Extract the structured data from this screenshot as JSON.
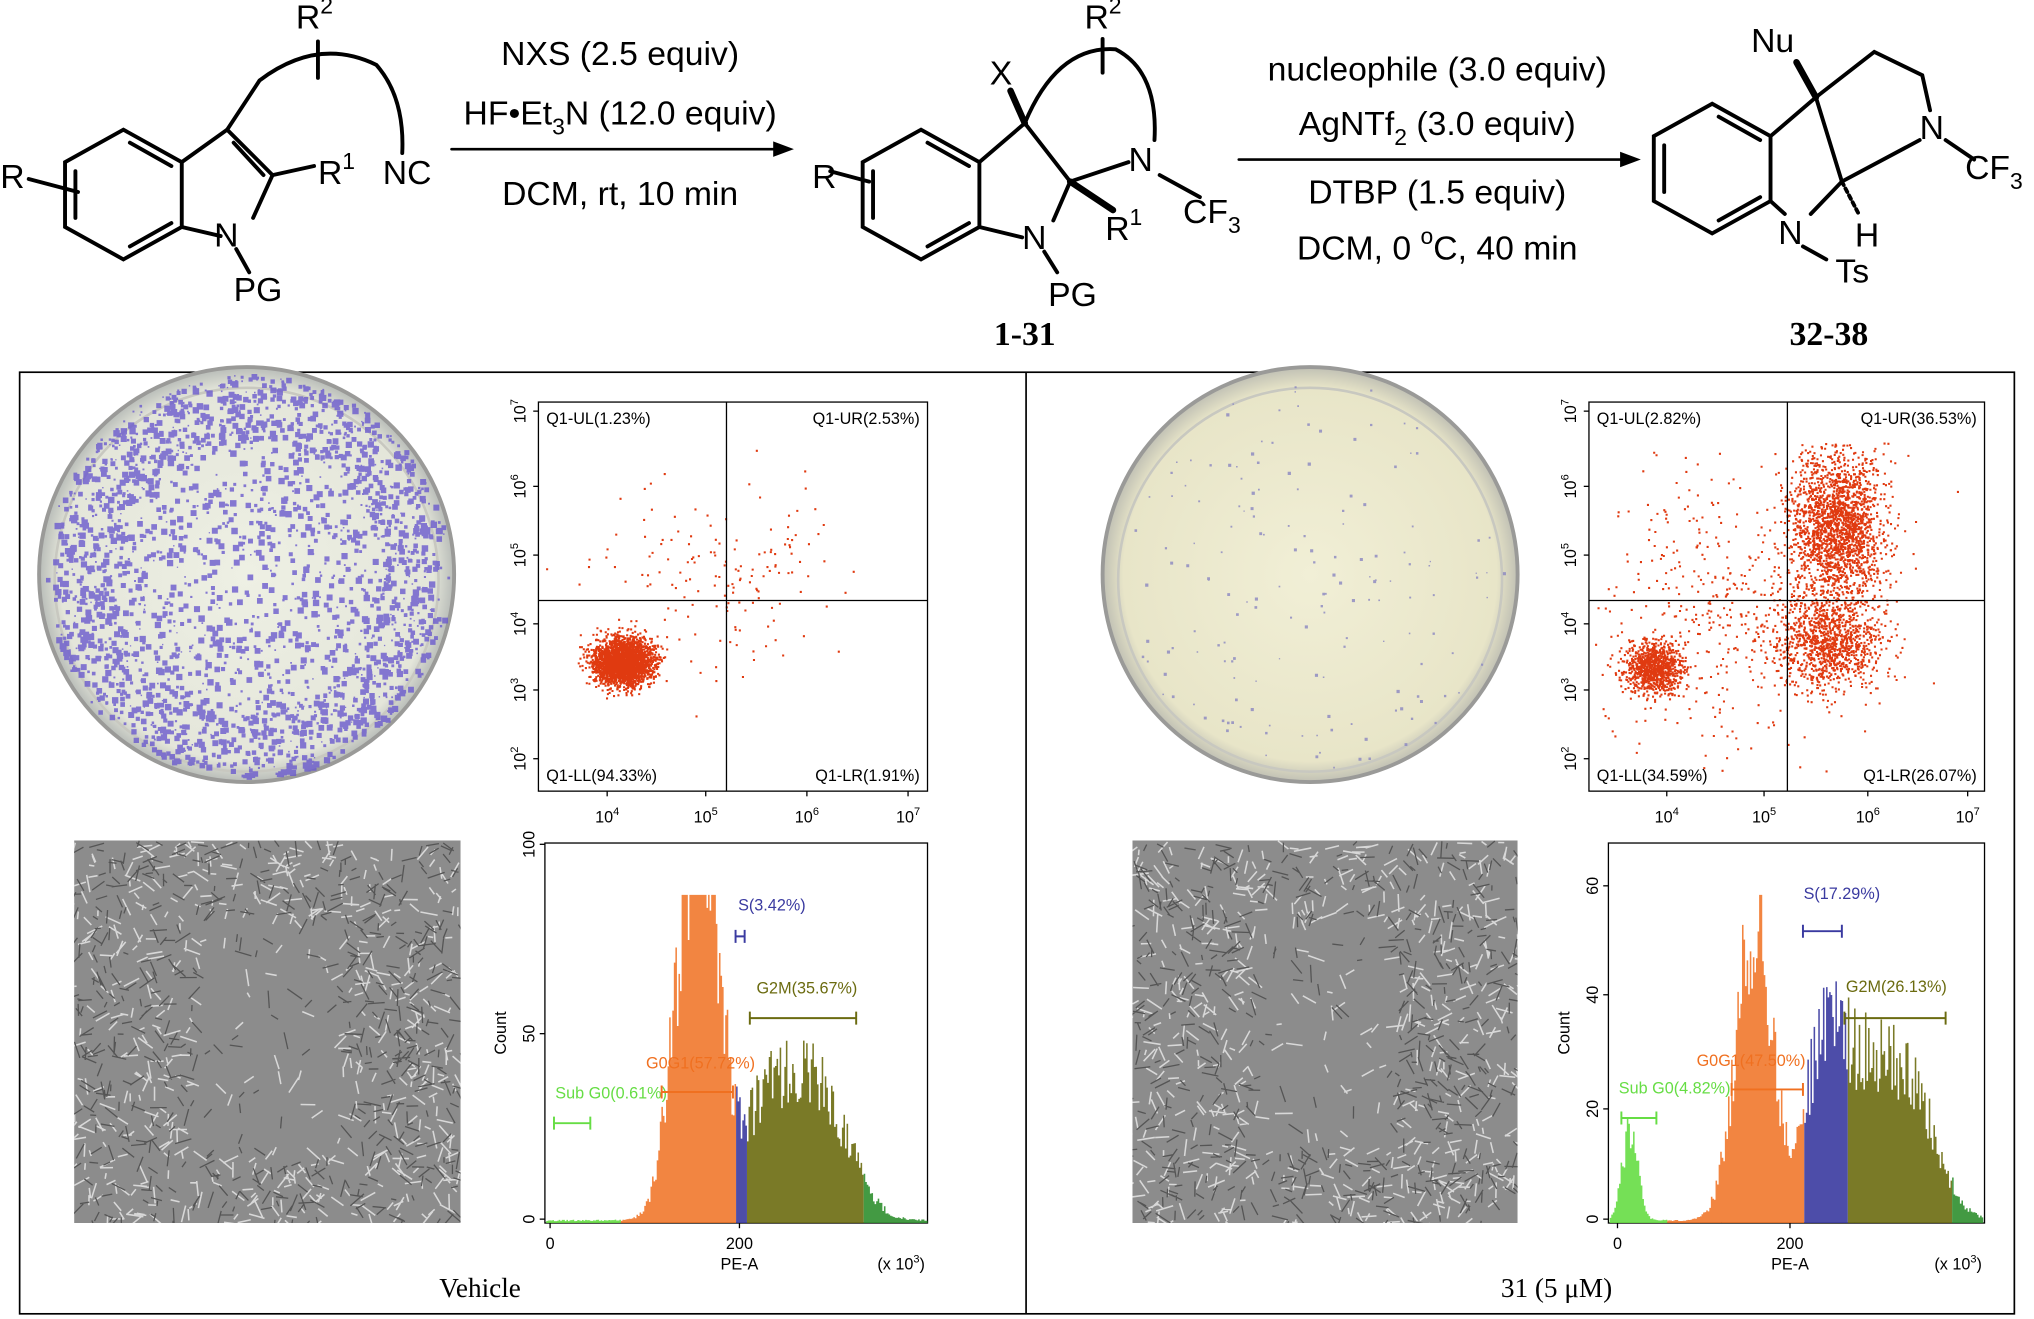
{
  "scheme": {
    "reactant": {
      "R": "R",
      "R1": [
        "R",
        {
          "sup": "1"
        }
      ],
      "R2": [
        "R",
        {
          "sup": "2"
        }
      ],
      "N": "N",
      "PG": "PG",
      "NC": "NC"
    },
    "conditions_1": [
      [
        "NXS (2.5 equiv)"
      ],
      [
        "HF•Et",
        {
          "sub": "3"
        },
        "N (12.0 equiv)"
      ],
      [
        "DCM, rt, 10 min"
      ]
    ],
    "intermediate": {
      "R": "R",
      "X": "X",
      "R2": [
        "R",
        {
          "sup": "2"
        }
      ],
      "N_ring": "N",
      "CF3": [
        "CF",
        {
          "sub": "3"
        }
      ],
      "N_indoline": "N",
      "R1": [
        "R",
        {
          "sup": "1"
        }
      ],
      "PG": "PG",
      "number": "1-31"
    },
    "conditions_2": [
      [
        "nucleophile (3.0 equiv)"
      ],
      [
        "AgNTf",
        {
          "sub": "2"
        },
        " (3.0 equiv)"
      ],
      [
        "DTBP (1.5 equiv)"
      ],
      [
        "DCM, 0 ",
        {
          "sup": "o"
        },
        "C, 40 min"
      ]
    ],
    "product": {
      "Nu": "Nu",
      "N_ring": "N",
      "CF3": [
        "CF",
        {
          "sub": "3"
        }
      ],
      "N_indoline": "N",
      "H": "H",
      "Ts": "Ts",
      "number": "32-38"
    }
  },
  "panels": [
    {
      "caption": "Vehicle",
      "scatter": {
        "quadrants": {
          "UL": "Q1-UL(1.23%)",
          "UR": "Q1-UR(2.53%)",
          "LL": "Q1-LL(94.33%)",
          "LR": "Q1-LR(1.91%)"
        },
        "y_ticks": [
          [
            "10",
            {
              "sup": "2"
            }
          ],
          [
            "10",
            {
              "sup": "3"
            }
          ],
          [
            "10",
            {
              "sup": "4"
            }
          ],
          [
            "10",
            {
              "sup": "5"
            }
          ],
          [
            "10",
            {
              "sup": "6"
            }
          ],
          [
            "10",
            {
              "sup": "7"
            }
          ]
        ],
        "x_ticks": [
          [
            "10",
            {
              "sup": "4"
            }
          ],
          [
            "10",
            {
              "sup": "5"
            }
          ],
          [
            "10",
            {
              "sup": "6"
            }
          ],
          [
            "10",
            {
              "sup": "7"
            }
          ]
        ]
      },
      "histogram": {
        "y_label": "Count",
        "x_label": "PE-A",
        "x_unit": [
          "(x 10",
          {
            "sup": "3"
          },
          ")"
        ],
        "y_ticks": [
          "0",
          "50",
          "100"
        ],
        "x_ticks": [
          "0",
          "200"
        ],
        "gates": {
          "SubG0": "Sub G0(0.61%)",
          "G0G1": "G0G1(57.72%)",
          "S": "S(3.42%)",
          "G2M": "G2M(35.67%)"
        }
      }
    },
    {
      "caption": "31 (5 μM)",
      "scatter": {
        "quadrants": {
          "UL": "Q1-UL(2.82%)",
          "UR": "Q1-UR(36.53%)",
          "LL": "Q1-LL(34.59%)",
          "LR": "Q1-LR(26.07%)"
        },
        "y_ticks": [
          [
            "10",
            {
              "sup": "2"
            }
          ],
          [
            "10",
            {
              "sup": "3"
            }
          ],
          [
            "10",
            {
              "sup": "4"
            }
          ],
          [
            "10",
            {
              "sup": "5"
            }
          ],
          [
            "10",
            {
              "sup": "6"
            }
          ],
          [
            "10",
            {
              "sup": "7"
            }
          ]
        ],
        "x_ticks": [
          [
            "10",
            {
              "sup": "4"
            }
          ],
          [
            "10",
            {
              "sup": "5"
            }
          ],
          [
            "10",
            {
              "sup": "6"
            }
          ],
          [
            "10",
            {
              "sup": "7"
            }
          ]
        ]
      },
      "histogram": {
        "y_label": "Count",
        "x_label": "PE-A",
        "x_unit": [
          "(x 10",
          {
            "sup": "3"
          },
          ")"
        ],
        "y_ticks": [
          "0",
          "20",
          "40",
          "60"
        ],
        "x_ticks": [
          "0",
          "200"
        ],
        "gates": {
          "SubG0": "Sub G0(4.82%)",
          "G0G1": "G0G1(47.50%)",
          "S": "S(17.29%)",
          "G2M": "G2M(26.13%)"
        }
      }
    }
  ]
}
